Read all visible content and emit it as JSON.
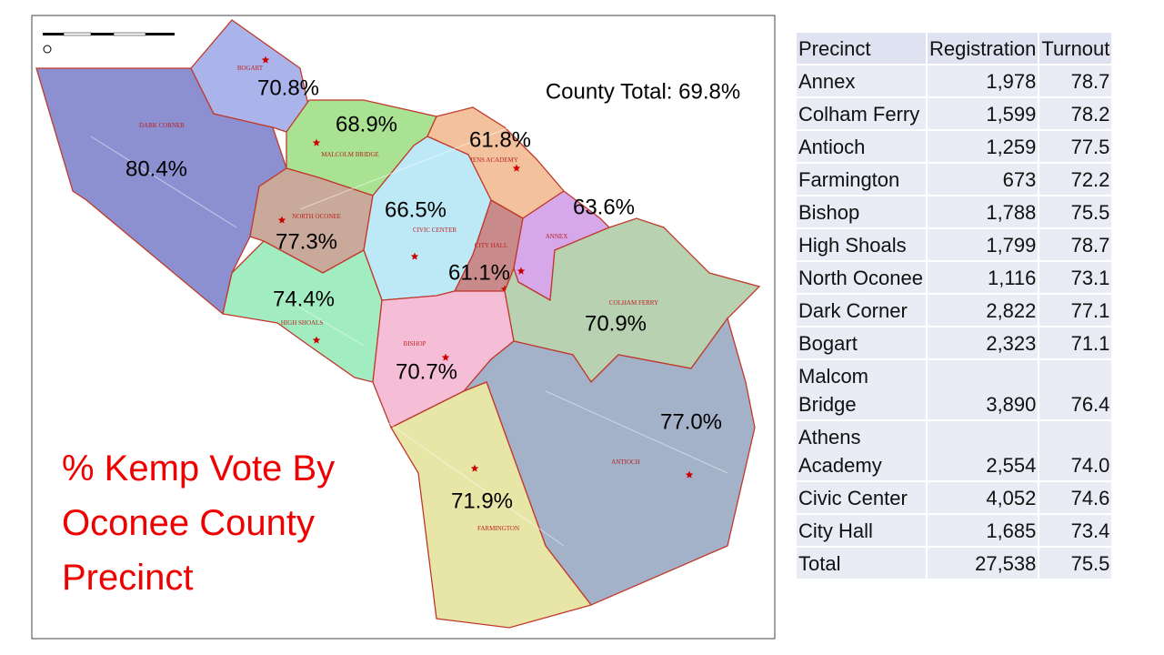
{
  "map": {
    "title_lines": [
      "% Kemp Vote By",
      "Oconee County",
      "Precinct"
    ],
    "county_total": "County Total: 69.8%",
    "precincts": [
      {
        "label": "DARK CORNER",
        "percent": "80.4%"
      },
      {
        "label": "BOGART",
        "percent": "70.8%"
      },
      {
        "label": "MALCOLM BRIDGE",
        "percent": "68.9%"
      },
      {
        "label": "ATHENS ACADEMY",
        "percent": "61.8%"
      },
      {
        "label": "NORTH OCONEE",
        "percent": "77.3%"
      },
      {
        "label": "CIVIC CENTER",
        "percent": "66.5%"
      },
      {
        "label": "CITY HALL",
        "percent": "61.1%"
      },
      {
        "label": "ANNEX",
        "percent": "63.6%"
      },
      {
        "label": "COLHAM FERRY",
        "percent": "70.9%"
      },
      {
        "label": "HIGH SHOALS",
        "percent": "74.4%"
      },
      {
        "label": "BISHOP",
        "percent": "70.7%"
      },
      {
        "label": "ANTIOCH",
        "percent": "77.0%"
      },
      {
        "label": "FARMINGTON",
        "percent": "71.9%"
      }
    ]
  },
  "table": {
    "header": [
      "Precinct",
      "Registration",
      "Turnout"
    ],
    "rows": [
      [
        "Annex",
        "1,978",
        "78.7"
      ],
      [
        "Colham Ferry",
        "1,599",
        "78.2"
      ],
      [
        "Antioch",
        "1,259",
        "77.5"
      ],
      [
        "Farmington",
        "673",
        "72.2"
      ],
      [
        "Bishop",
        "1,788",
        "75.5"
      ],
      [
        "High Shoals",
        "1,799",
        "78.7"
      ],
      [
        "North Oconee",
        "1,116",
        "73.1"
      ],
      [
        "Dark Corner",
        "2,822",
        "77.1"
      ],
      [
        "Bogart",
        "2,323",
        "71.1"
      ],
      [
        "Malcom Bridge",
        "3,890",
        "76.4"
      ],
      [
        "Athens Academy",
        "2,554",
        "74.0"
      ],
      [
        "Civic Center",
        "4,052",
        "74.6"
      ],
      [
        "City Hall",
        "1,685",
        "73.4"
      ],
      [
        "Total",
        "27,538",
        "75.5"
      ]
    ]
  }
}
